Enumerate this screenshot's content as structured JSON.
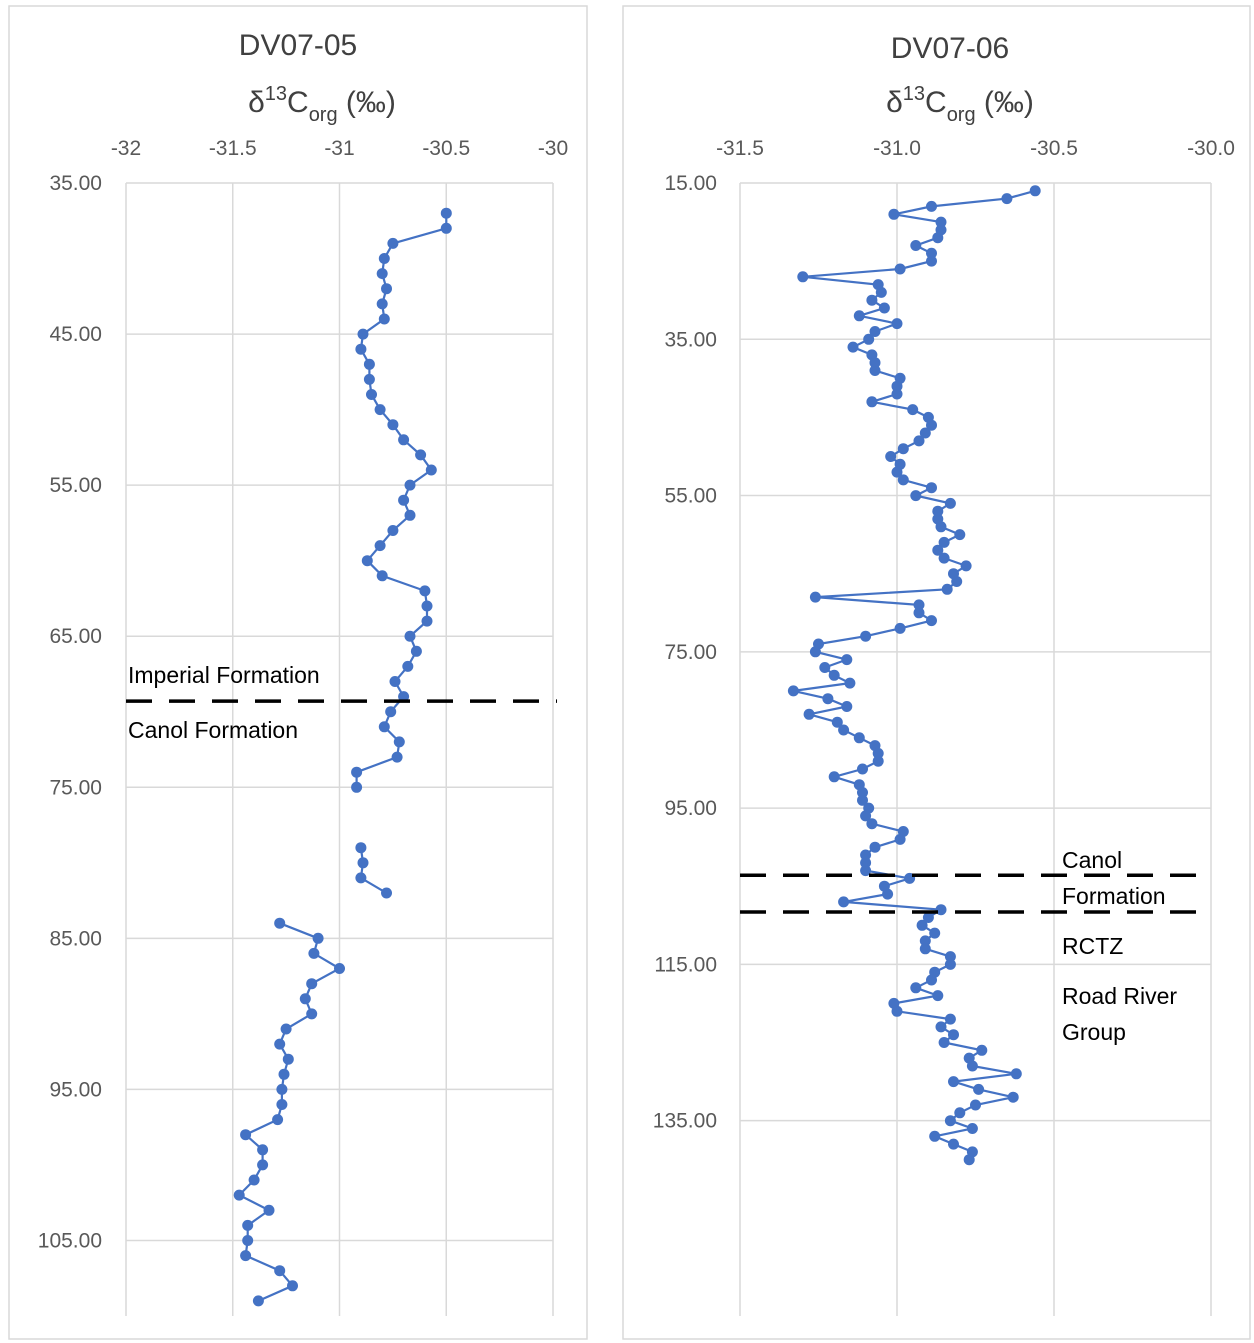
{
  "chart_data": [
    {
      "type": "line",
      "title": "DV07-05",
      "xlabel": {
        "main": "δ",
        "sup": "13",
        "base": "C",
        "sub": "org",
        "unit": " (‰)"
      },
      "x_ticks": [
        "-32",
        "-31.5",
        "-31",
        "-30.5",
        "-30"
      ],
      "y_ticks": [
        "35.00",
        "45.00",
        "55.00",
        "65.00",
        "75.00",
        "85.00",
        "95.00",
        "105.00"
      ],
      "xlim": [
        -32,
        -30
      ],
      "ylim": [
        35,
        110
      ],
      "y_inverted": true,
      "x_axis_position": "top",
      "grid": true,
      "series": [
        {
          "segments": [
            [
              [
                -30.5,
                37.0
              ],
              [
                -30.5,
                38.0
              ],
              [
                -30.75,
                39.0
              ],
              [
                -30.79,
                40.0
              ],
              [
                -30.8,
                41.0
              ],
              [
                -30.78,
                42.0
              ],
              [
                -30.8,
                43.0
              ],
              [
                -30.79,
                44.0
              ],
              [
                -30.89,
                45.0
              ],
              [
                -30.9,
                46.0
              ],
              [
                -30.86,
                47.0
              ],
              [
                -30.86,
                48.0
              ],
              [
                -30.85,
                49.0
              ],
              [
                -30.81,
                50.0
              ],
              [
                -30.75,
                51.0
              ],
              [
                -30.7,
                52.0
              ],
              [
                -30.62,
                53.0
              ],
              [
                -30.57,
                54.0
              ],
              [
                -30.67,
                55.0
              ],
              [
                -30.7,
                56.0
              ],
              [
                -30.67,
                57.0
              ],
              [
                -30.75,
                58.0
              ],
              [
                -30.81,
                59.0
              ],
              [
                -30.87,
                60.0
              ],
              [
                -30.8,
                61.0
              ],
              [
                -30.6,
                62.0
              ],
              [
                -30.59,
                63.0
              ],
              [
                -30.59,
                64.0
              ],
              [
                -30.67,
                65.0
              ],
              [
                -30.64,
                66.0
              ],
              [
                -30.68,
                67.0
              ],
              [
                -30.74,
                68.0
              ],
              [
                -30.7,
                69.0
              ],
              [
                -30.76,
                70.0
              ],
              [
                -30.79,
                71.0
              ],
              [
                -30.72,
                72.0
              ],
              [
                -30.73,
                73.0
              ],
              [
                -30.92,
                74.0
              ],
              [
                -30.92,
                75.0
              ]
            ],
            [
              [
                -30.9,
                79.0
              ],
              [
                -30.89,
                80.0
              ],
              [
                -30.9,
                81.0
              ],
              [
                -30.78,
                82.0
              ]
            ],
            [
              [
                -31.28,
                84.0
              ],
              [
                -31.1,
                85.0
              ],
              [
                -31.12,
                86.0
              ],
              [
                -31.0,
                87.0
              ],
              [
                -31.13,
                88.0
              ],
              [
                -31.16,
                89.0
              ],
              [
                -31.13,
                90.0
              ],
              [
                -31.25,
                91.0
              ],
              [
                -31.28,
                92.0
              ],
              [
                -31.24,
                93.0
              ],
              [
                -31.26,
                94.0
              ],
              [
                -31.27,
                95.0
              ],
              [
                -31.27,
                96.0
              ],
              [
                -31.29,
                97.0
              ],
              [
                -31.44,
                98.0
              ],
              [
                -31.36,
                99.0
              ],
              [
                -31.36,
                100.0
              ],
              [
                -31.4,
                101.0
              ],
              [
                -31.47,
                102.0
              ],
              [
                -31.33,
                103.0
              ],
              [
                -31.43,
                104.0
              ],
              [
                -31.43,
                105.0
              ],
              [
                -31.44,
                106.0
              ],
              [
                -31.28,
                107.0
              ],
              [
                -31.22,
                108.0
              ],
              [
                -31.38,
                109.0
              ]
            ]
          ]
        }
      ],
      "boundaries": [
        {
          "y": 69.3,
          "label_above": "Imperial Formation",
          "label_below": "Canol Formation"
        }
      ]
    },
    {
      "type": "line",
      "title": "DV07-06",
      "xlabel": {
        "main": "δ",
        "sup": "13",
        "base": "C",
        "sub": "org",
        "unit": " (‰)"
      },
      "x_ticks": [
        "-31.5",
        "-31.0",
        "-30.5",
        "-30.0"
      ],
      "y_ticks": [
        "15.00",
        "35.00",
        "55.00",
        "75.00",
        "95.00",
        "115.00",
        "135.00"
      ],
      "xlim": [
        -31.5,
        -30.0
      ],
      "ylim": [
        15,
        160
      ],
      "y_inverted": true,
      "x_axis_position": "top",
      "grid": true,
      "series": [
        {
          "segments": [
            [
              [
                -30.56,
                16.0
              ],
              [
                -30.65,
                17.0
              ],
              [
                -30.89,
                18.0
              ],
              [
                -31.01,
                19.0
              ],
              [
                -30.86,
                20.0
              ],
              [
                -30.86,
                21.0
              ],
              [
                -30.87,
                22.0
              ],
              [
                -30.94,
                23.0
              ],
              [
                -30.89,
                24.0
              ],
              [
                -30.89,
                25.0
              ],
              [
                -30.99,
                26.0
              ],
              [
                -31.3,
                27.0
              ],
              [
                -31.06,
                28.0
              ],
              [
                -31.05,
                29.0
              ],
              [
                -31.08,
                30.0
              ],
              [
                -31.04,
                31.0
              ],
              [
                -31.12,
                32.0
              ],
              [
                -31.0,
                33.0
              ],
              [
                -31.07,
                34.0
              ],
              [
                -31.09,
                35.0
              ],
              [
                -31.14,
                36.0
              ],
              [
                -31.08,
                37.0
              ],
              [
                -31.07,
                38.0
              ],
              [
                -31.07,
                39.0
              ],
              [
                -30.99,
                40.0
              ],
              [
                -31.0,
                41.0
              ],
              [
                -31.0,
                42.0
              ],
              [
                -31.08,
                43.0
              ],
              [
                -30.95,
                44.0
              ],
              [
                -30.9,
                45.0
              ],
              [
                -30.89,
                46.0
              ],
              [
                -30.91,
                47.0
              ],
              [
                -30.93,
                48.0
              ],
              [
                -30.98,
                49.0
              ],
              [
                -31.02,
                50.0
              ],
              [
                -30.99,
                51.0
              ],
              [
                -31.0,
                52.0
              ],
              [
                -30.98,
                53.0
              ],
              [
                -30.89,
                54.0
              ],
              [
                -30.94,
                55.0
              ],
              [
                -30.83,
                56.0
              ],
              [
                -30.87,
                57.0
              ],
              [
                -30.87,
                58.0
              ],
              [
                -30.86,
                59.0
              ],
              [
                -30.8,
                60.0
              ],
              [
                -30.85,
                61.0
              ],
              [
                -30.87,
                62.0
              ],
              [
                -30.85,
                63.0
              ],
              [
                -30.78,
                64.0
              ],
              [
                -30.82,
                65.0
              ],
              [
                -30.81,
                66.0
              ],
              [
                -30.84,
                67.0
              ],
              [
                -31.26,
                68.0
              ],
              [
                -30.93,
                69.0
              ],
              [
                -30.93,
                70.0
              ],
              [
                -30.89,
                71.0
              ],
              [
                -30.99,
                72.0
              ],
              [
                -31.1,
                73.0
              ],
              [
                -31.25,
                74.0
              ],
              [
                -31.26,
                75.0
              ],
              [
                -31.16,
                76.0
              ],
              [
                -31.23,
                77.0
              ],
              [
                -31.2,
                78.0
              ],
              [
                -31.15,
                79.0
              ],
              [
                -31.33,
                80.0
              ],
              [
                -31.22,
                81.0
              ],
              [
                -31.16,
                82.0
              ],
              [
                -31.28,
                83.0
              ],
              [
                -31.19,
                84.0
              ],
              [
                -31.17,
                85.0
              ],
              [
                -31.12,
                86.0
              ],
              [
                -31.07,
                87.0
              ],
              [
                -31.06,
                88.0
              ],
              [
                -31.06,
                89.0
              ],
              [
                -31.11,
                90.0
              ],
              [
                -31.2,
                91.0
              ],
              [
                -31.12,
                92.0
              ],
              [
                -31.11,
                93.0
              ],
              [
                -31.11,
                94.0
              ],
              [
                -31.09,
                95.0
              ],
              [
                -31.1,
                96.0
              ],
              [
                -31.08,
                97.0
              ],
              [
                -30.98,
                98.0
              ],
              [
                -30.99,
                99.0
              ],
              [
                -31.07,
                100.0
              ],
              [
                -31.1,
                101.0
              ],
              [
                -31.1,
                102.0
              ],
              [
                -31.1,
                103.0
              ],
              [
                -30.96,
                104.0
              ],
              [
                -31.04,
                105.0
              ],
              [
                -31.03,
                106.0
              ],
              [
                -31.17,
                107.0
              ],
              [
                -30.86,
                108.0
              ],
              [
                -30.9,
                109.0
              ],
              [
                -30.92,
                110.0
              ],
              [
                -30.88,
                111.0
              ],
              [
                -30.91,
                112.0
              ],
              [
                -30.91,
                113.0
              ],
              [
                -30.83,
                114.0
              ],
              [
                -30.83,
                115.0
              ],
              [
                -30.88,
                116.0
              ],
              [
                -30.89,
                117.0
              ],
              [
                -30.94,
                118.0
              ],
              [
                -30.87,
                119.0
              ],
              [
                -31.01,
                120.0
              ],
              [
                -31.0,
                121.0
              ],
              [
                -30.83,
                122.0
              ],
              [
                -30.86,
                123.0
              ],
              [
                -30.82,
                124.0
              ],
              [
                -30.85,
                125.0
              ],
              [
                -30.73,
                126.0
              ],
              [
                -30.77,
                127.0
              ],
              [
                -30.76,
                128.0
              ],
              [
                -30.62,
                129.0
              ],
              [
                -30.82,
                130.0
              ],
              [
                -30.74,
                131.0
              ],
              [
                -30.63,
                132.0
              ],
              [
                -30.75,
                133.0
              ],
              [
                -30.8,
                134.0
              ],
              [
                -30.83,
                135.0
              ],
              [
                -30.76,
                136.0
              ],
              [
                -30.88,
                137.0
              ],
              [
                -30.82,
                138.0
              ],
              [
                -30.76,
                139.0
              ],
              [
                -30.77,
                140.0
              ]
            ]
          ]
        }
      ],
      "boundaries": [
        {
          "y": 103.6
        },
        {
          "y": 108.3
        }
      ],
      "annotations": [
        "Canol",
        "Formation",
        "RCTZ",
        "Road River",
        "Group"
      ]
    }
  ]
}
